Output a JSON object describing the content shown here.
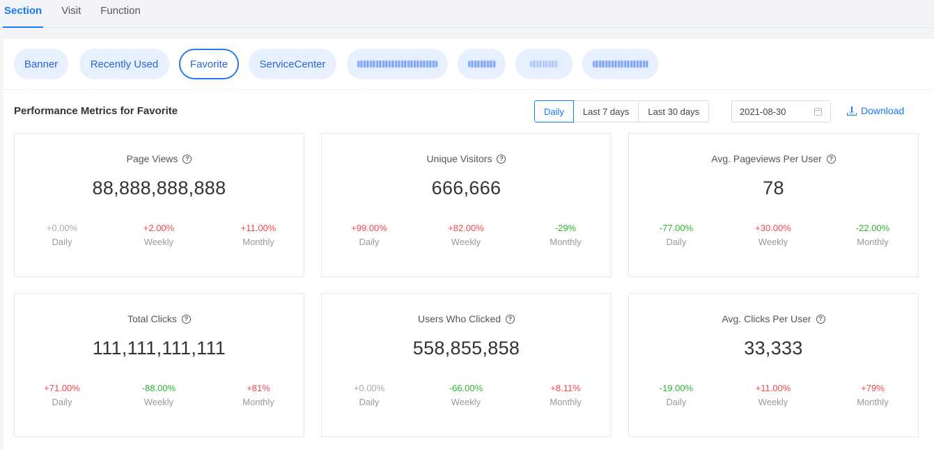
{
  "top_tabs": [
    {
      "label": "Section",
      "active": true
    },
    {
      "label": "Visit",
      "active": false
    },
    {
      "label": "Function",
      "active": false
    }
  ],
  "chips": [
    {
      "label": "Banner",
      "active": false,
      "blurred": false
    },
    {
      "label": "Recently Used",
      "active": false,
      "blurred": false
    },
    {
      "label": "Favorite",
      "active": true,
      "blurred": false
    },
    {
      "label": "ServiceCenter",
      "active": false,
      "blurred": false
    },
    {
      "label": "",
      "active": false,
      "blurred": true
    },
    {
      "label": "",
      "active": false,
      "blurred": true
    },
    {
      "label": "",
      "active": false,
      "blurred": true
    },
    {
      "label": "",
      "active": false,
      "blurred": true
    }
  ],
  "header": {
    "title": "Performance Metrics for Favorite",
    "ranges": [
      {
        "label": "Daily",
        "active": true
      },
      {
        "label": "Last 7 days",
        "active": false
      },
      {
        "label": "Last 30 days",
        "active": false
      }
    ],
    "date_value": "2021-08-30",
    "download_label": "Download"
  },
  "cards": [
    {
      "title": "Page Views",
      "value": "88,888,888,888",
      "stats": [
        {
          "pct": "+0.00%",
          "label": "Daily",
          "trend": "flat"
        },
        {
          "pct": "+2.00%",
          "label": "Weekly",
          "trend": "up"
        },
        {
          "pct": "+11.00%",
          "label": "Monthly",
          "trend": "up"
        }
      ]
    },
    {
      "title": "Unique Visitors",
      "value": "666,666",
      "stats": [
        {
          "pct": "+99.00%",
          "label": "Daily",
          "trend": "up"
        },
        {
          "pct": "+82.00%",
          "label": "Weekly",
          "trend": "up"
        },
        {
          "pct": "-29%",
          "label": "Monthly",
          "trend": "down"
        }
      ]
    },
    {
      "title": "Avg. Pageviews Per User",
      "value": "78",
      "stats": [
        {
          "pct": "-77.00%",
          "label": "Daily",
          "trend": "down"
        },
        {
          "pct": "+30.00%",
          "label": "Weekly",
          "trend": "up"
        },
        {
          "pct": "-22.00%",
          "label": "Monthly",
          "trend": "down"
        }
      ]
    },
    {
      "title": "Total Clicks",
      "value": "111,111,111,111",
      "stats": [
        {
          "pct": "+71.00%",
          "label": "Daily",
          "trend": "up"
        },
        {
          "pct": "-88.00%",
          "label": "Weekly",
          "trend": "down"
        },
        {
          "pct": "+81%",
          "label": "Monthly",
          "trend": "up"
        }
      ]
    },
    {
      "title": "Users Who Clicked",
      "value": "558,855,858",
      "stats": [
        {
          "pct": "+0.00%",
          "label": "Daily",
          "trend": "flat"
        },
        {
          "pct": "-66.00%",
          "label": "Weekly",
          "trend": "down"
        },
        {
          "pct": "+8.11%",
          "label": "Monthly",
          "trend": "up"
        }
      ]
    },
    {
      "title": "Avg. Clicks Per User",
      "value": "33,333",
      "stats": [
        {
          "pct": "-19.00%",
          "label": "Daily",
          "trend": "down"
        },
        {
          "pct": "+11.00%",
          "label": "Weekly",
          "trend": "up"
        },
        {
          "pct": "+79%",
          "label": "Monthly",
          "trend": "up"
        }
      ]
    }
  ],
  "colors": {
    "accent": "#1677ff",
    "increase": "#f0484b",
    "decrease": "#2db52d",
    "neutral": "#aaaaaa"
  },
  "icons": {
    "help": "question-circle-icon",
    "calendar": "calendar-icon",
    "download": "download-icon"
  }
}
